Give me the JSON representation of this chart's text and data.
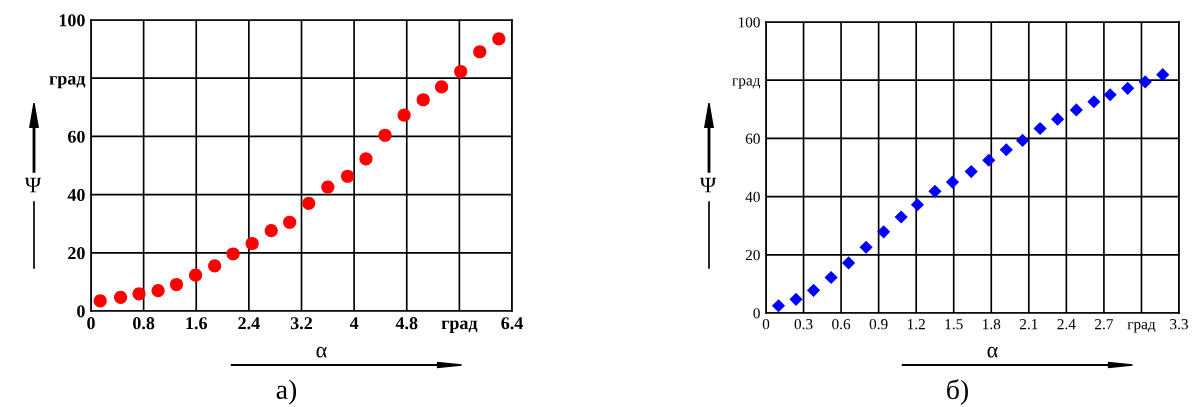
{
  "chart_data": [
    {
      "type": "scatter",
      "xlabel": "α",
      "ylabel": "Ψ",
      "annotations": [
        "а)"
      ],
      "marker": "circle",
      "grid": true,
      "xlim": [
        0,
        6.4
      ],
      "xticks": [
        0,
        0.8,
        1.6,
        2.4,
        3.2,
        4,
        4.8,
        {
          "value": 5.6,
          "label": "град"
        },
        6.4
      ],
      "ylim": [
        0,
        100
      ],
      "yticks": [
        0,
        20,
        40,
        60,
        {
          "value": 80,
          "label": "град"
        },
        100
      ],
      "series": [
        {
          "color": "#ff0000",
          "x": [
            0.14,
            0.45,
            0.73,
            1.02,
            1.3,
            1.59,
            1.88,
            2.16,
            2.45,
            2.74,
            3.02,
            3.31,
            3.6,
            3.9,
            4.18,
            4.47,
            4.76,
            5.05,
            5.33,
            5.62,
            5.91,
            6.2
          ],
          "values": [
            3.5,
            4.7,
            5.9,
            7.0,
            9.1,
            12.3,
            15.5,
            19.6,
            23.2,
            27.6,
            30.5,
            37.0,
            42.6,
            46.3,
            52.3,
            60.4,
            67.3,
            72.6,
            77.0,
            82.3,
            89.1,
            93.5
          ]
        }
      ]
    },
    {
      "type": "scatter",
      "xlabel": "α",
      "ylabel": "Ψ",
      "annotations": [
        "б)"
      ],
      "marker": "diamond",
      "grid": true,
      "xlim": [
        0,
        3.3
      ],
      "xticks": [
        0,
        0.3,
        0.6,
        0.9,
        1.2,
        1.5,
        1.8,
        2.1,
        2.4,
        2.7,
        {
          "value": 3.0,
          "label": "град"
        },
        3.3
      ],
      "ylim": [
        0,
        100
      ],
      "yticks": [
        0,
        20,
        40,
        60,
        {
          "value": 80,
          "label": "град"
        },
        100
      ],
      "series": [
        {
          "color": "#0000ff",
          "x": [
            0.1,
            0.24,
            0.38,
            0.52,
            0.66,
            0.8,
            0.94,
            1.08,
            1.21,
            1.35,
            1.49,
            1.64,
            1.78,
            1.92,
            2.05,
            2.19,
            2.33,
            2.48,
            2.62,
            2.75,
            2.89,
            3.03,
            3.17
          ],
          "values": [
            2.5,
            4.7,
            7.8,
            12.2,
            17.2,
            22.6,
            27.9,
            33.0,
            37.2,
            41.8,
            45.0,
            48.6,
            52.5,
            56.1,
            59.3,
            63.4,
            66.6,
            69.8,
            72.6,
            75.0,
            77.2,
            79.4,
            81.9
          ]
        }
      ]
    }
  ]
}
